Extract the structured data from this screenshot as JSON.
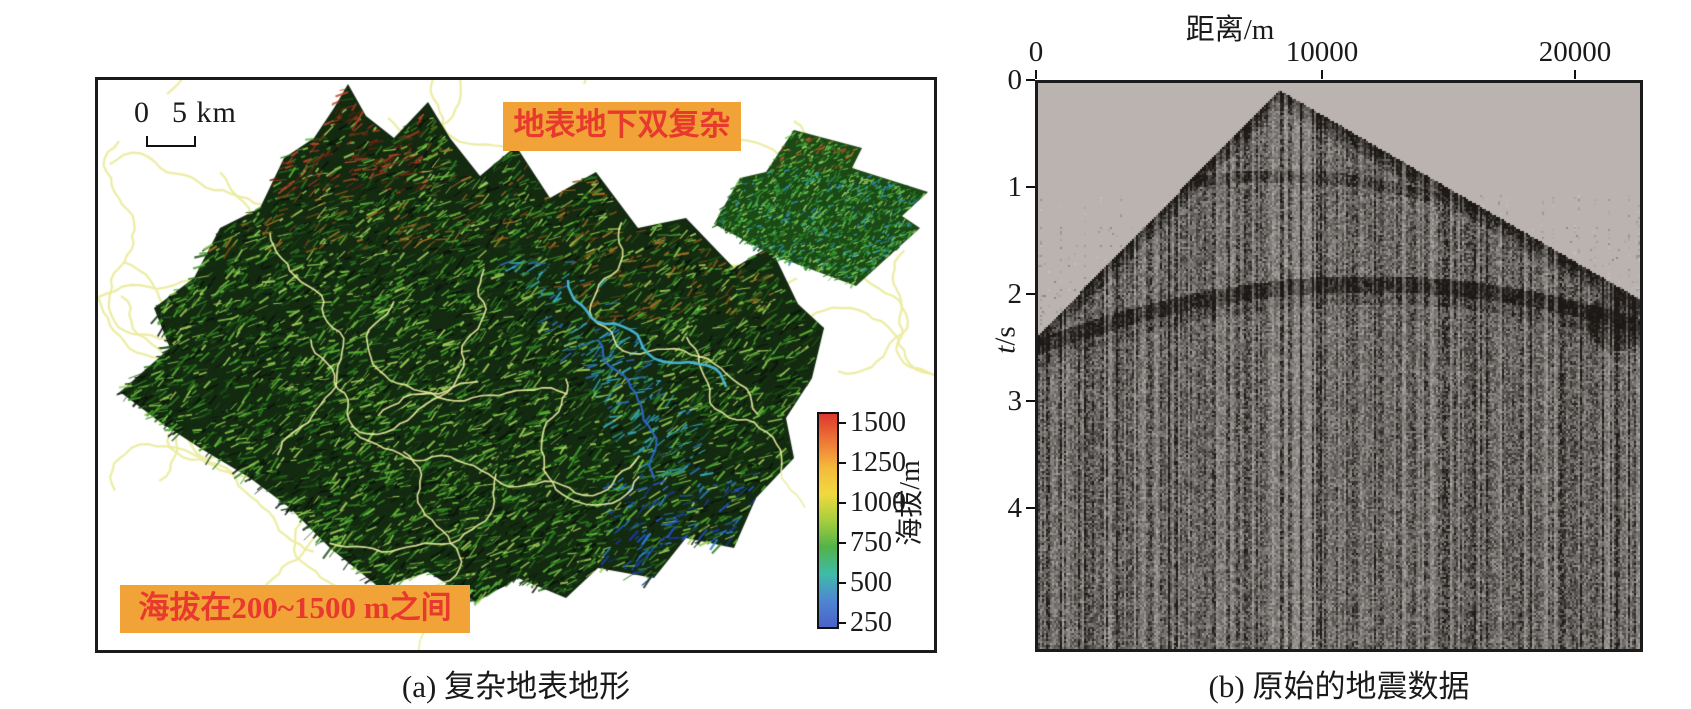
{
  "panel_a": {
    "caption": "(a) 复杂地表地形",
    "scale_bar": {
      "zero": "0",
      "five_km": "5 km"
    },
    "annotation_top": "地表地下双复杂",
    "annotation_bottom": "海拔在200~1500 m之间",
    "colorbar": {
      "title": "海拔/m",
      "ticks": [
        "1500",
        "1250",
        "1000",
        "750",
        "500",
        "250"
      ],
      "gradient": [
        "#dd382d",
        "#ee7637",
        "#f5b83c",
        "#f0da3e",
        "#a6ce3e",
        "#52b348",
        "#3fbba8",
        "#4f86d2",
        "#4a63c8"
      ]
    },
    "accent": {
      "box_fill": "#f2a338",
      "box_text": "#e8392e"
    }
  },
  "panel_b": {
    "caption": "(b) 原始的地震数据",
    "x_axis": {
      "title": "距离/m",
      "ticks": [
        "0",
        "10000",
        "20000"
      ]
    },
    "y_axis": {
      "title_var": "t",
      "title_unit": "/s",
      "ticks": [
        "0",
        "1",
        "2",
        "3",
        "4"
      ]
    }
  },
  "chart_data": [
    {
      "type": "heatmap",
      "panel": "b",
      "title": "原始的地震数据",
      "xlabel": "距离/m",
      "ylabel": "t/s",
      "x_ticks": [
        0,
        10000,
        20000
      ],
      "y_ticks": [
        0,
        1,
        2,
        3,
        4
      ],
      "xlim": [
        0,
        22000
      ],
      "ylim": [
        5.3,
        0
      ],
      "legend": "none",
      "grid": false,
      "description": "Grayscale raw shot gather: noisy triangular wavefield with apex at x≈10000 m, t≈0.1 s; first-arrival flanks reach x=0 at t≈2.4 s and x=22000 m at t≈2.0 s; strong curved reflection band around t≈1.9-2.5 s; vertical noise streaks fill the section below t≈2.4 s"
    },
    {
      "type": "map",
      "panel": "a",
      "title": "复杂地表地形",
      "colorbar_label": "海拔/m",
      "colorbar_ticks": [
        1500,
        1250,
        1000,
        750,
        500,
        250
      ],
      "elevation_range_m": [
        200,
        1500
      ],
      "scale_bar_km": 5,
      "description": "3D shaded-relief terrain, mostly green ridges with red-brown peaks (~1500 m) and blue river valleys (~250 m), pale yellow drainage lines, small flat map inset at upper right"
    }
  ]
}
